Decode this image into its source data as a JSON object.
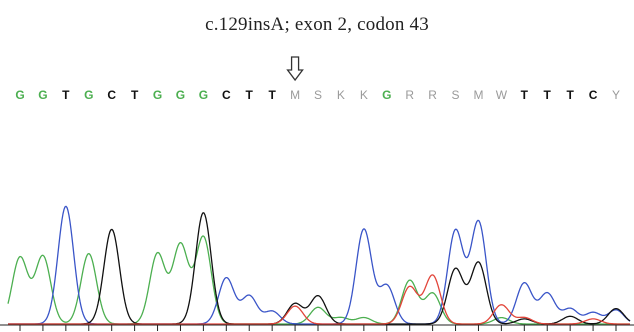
{
  "annotation": {
    "mutation_label": "c.129insA; exon 2, codon 43"
  },
  "colors": {
    "A": "#4caf50",
    "G": "#3a55c8",
    "C": "#111111",
    "T": "#e2453a",
    "ambiguous": "#9a9a9a",
    "arrow": "#333333"
  },
  "chart_data": {
    "type": "line",
    "title": "",
    "xlabel": "",
    "ylabel": "",
    "grid": false,
    "base_calls": [
      {
        "base": "G",
        "kind": "A"
      },
      {
        "base": "G",
        "kind": "A"
      },
      {
        "base": "T",
        "kind": "C"
      },
      {
        "base": "G",
        "kind": "A"
      },
      {
        "base": "C",
        "kind": "C"
      },
      {
        "base": "T",
        "kind": "C"
      },
      {
        "base": "G",
        "kind": "A"
      },
      {
        "base": "G",
        "kind": "A"
      },
      {
        "base": "G",
        "kind": "A"
      },
      {
        "base": "C",
        "kind": "C"
      },
      {
        "base": "T",
        "kind": "C"
      },
      {
        "base": "T",
        "kind": "C"
      },
      {
        "base": "M",
        "kind": "ambiguous"
      },
      {
        "base": "S",
        "kind": "ambiguous"
      },
      {
        "base": "K",
        "kind": "ambiguous"
      },
      {
        "base": "K",
        "kind": "ambiguous"
      },
      {
        "base": "G",
        "kind": "A"
      },
      {
        "base": "R",
        "kind": "ambiguous"
      },
      {
        "base": "R",
        "kind": "ambiguous"
      },
      {
        "base": "S",
        "kind": "ambiguous"
      },
      {
        "base": "M",
        "kind": "ambiguous"
      },
      {
        "base": "W",
        "kind": "ambiguous"
      },
      {
        "base": "T",
        "kind": "C"
      },
      {
        "base": "T",
        "kind": "C"
      },
      {
        "base": "T",
        "kind": "C"
      },
      {
        "base": "C",
        "kind": "C"
      },
      {
        "base": "Y",
        "kind": "ambiguous"
      }
    ],
    "arrow_at_index": 12,
    "series": [
      {
        "color_key": "A",
        "peaks": [
          [
            0,
            0.52
          ],
          [
            1,
            0.53
          ],
          [
            3,
            0.55
          ],
          [
            6,
            0.55
          ],
          [
            7,
            0.62
          ],
          [
            8,
            0.68
          ],
          [
            13,
            0.13
          ],
          [
            14,
            0.05
          ],
          [
            15,
            0.05
          ],
          [
            17,
            0.34
          ],
          [
            18,
            0.24
          ],
          [
            21,
            0.05
          ]
        ]
      },
      {
        "color_key": "G",
        "peaks": [
          [
            2,
            0.92
          ],
          [
            9,
            0.36
          ],
          [
            10,
            0.22
          ],
          [
            11,
            0.1
          ],
          [
            15,
            0.74
          ],
          [
            16,
            0.3
          ],
          [
            19,
            0.73
          ],
          [
            20,
            0.8
          ],
          [
            22,
            0.32
          ],
          [
            23,
            0.24
          ],
          [
            24,
            0.12
          ],
          [
            25,
            0.09
          ],
          [
            26,
            0.11
          ]
        ]
      },
      {
        "color_key": "C",
        "peaks": [
          [
            4,
            0.74
          ],
          [
            8,
            0.87
          ],
          [
            12,
            0.16
          ],
          [
            13,
            0.22
          ],
          [
            19,
            0.43
          ],
          [
            20,
            0.48
          ],
          [
            22,
            0.04
          ],
          [
            24,
            0.06
          ],
          [
            26,
            0.12
          ]
        ]
      },
      {
        "color_key": "T",
        "peaks": [
          [
            12,
            0.14
          ],
          [
            17,
            0.29
          ],
          [
            18,
            0.38
          ],
          [
            21,
            0.15
          ],
          [
            22,
            0.05
          ],
          [
            25,
            0.04
          ]
        ]
      }
    ]
  }
}
